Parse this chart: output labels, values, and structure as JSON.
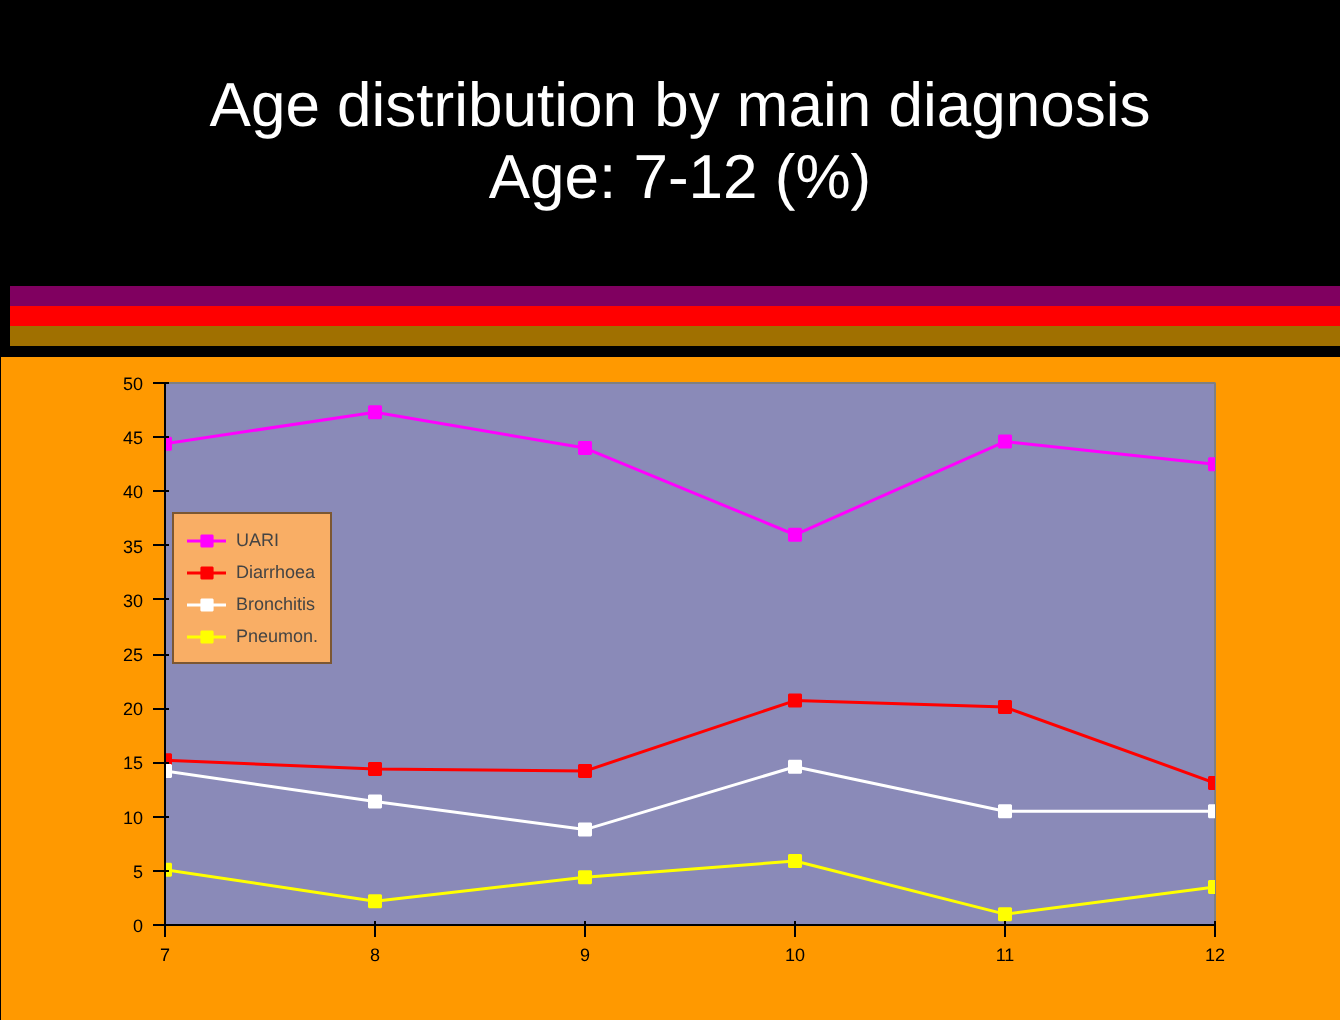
{
  "chart_data": {
    "type": "line",
    "title": "Age distribution by main diagnosis\nAge: 7-12 (%)",
    "x": [
      7,
      8,
      9,
      10,
      11,
      12
    ],
    "series": [
      {
        "name": "UARI",
        "color": "#ff00ff",
        "values": [
          44.4,
          47.3,
          44.0,
          36.0,
          44.6,
          42.5
        ]
      },
      {
        "name": "Diarrhoea",
        "color": "#ff0000",
        "values": [
          15.2,
          14.4,
          14.2,
          20.7,
          20.1,
          13.1
        ]
      },
      {
        "name": "Bronchitis",
        "color": "#ffffff",
        "values": [
          14.2,
          11.4,
          8.8,
          14.6,
          10.5,
          10.5
        ]
      },
      {
        "name": "Pneumon.",
        "color": "#ffff00",
        "values": [
          5.1,
          2.2,
          4.4,
          5.9,
          1.0,
          3.5
        ]
      }
    ],
    "xlim": [
      7,
      12
    ],
    "xticks": [
      7,
      8,
      9,
      10,
      11,
      12
    ],
    "ylim": [
      0,
      50
    ],
    "yticks": [
      0,
      5,
      10,
      15,
      20,
      25,
      30,
      35,
      40,
      45,
      50
    ],
    "grid": false,
    "legend": "top left",
    "marker": "square",
    "line_style": "solid"
  }
}
